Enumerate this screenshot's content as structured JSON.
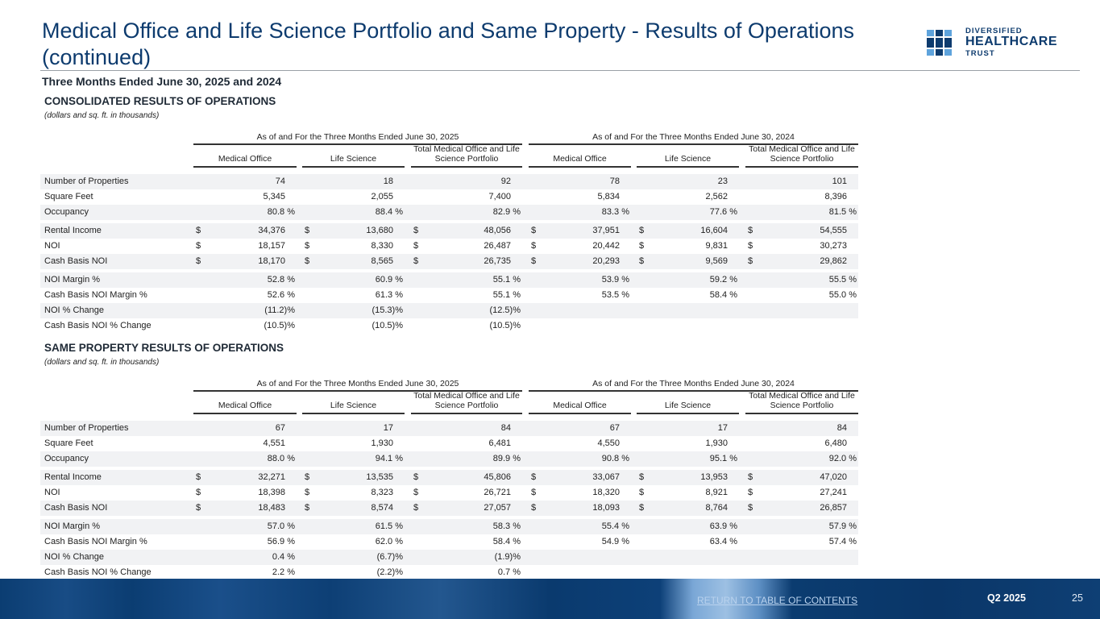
{
  "header": {
    "title": "Medical Office and Life Science Portfolio and Same Property - Results of Operations (continued)",
    "subtitle": "Three Months Ended June 30, 2025 and 2024"
  },
  "logo": {
    "line1": "DIVERSIFIED",
    "line2": "HEALTHCARE",
    "line3": "TRUST"
  },
  "colors": {
    "navy": "#0d3b6e",
    "light": "#5ea3dc"
  },
  "sections": [
    {
      "title": "CONSOLIDATED RESULTS OF OPERATIONS",
      "note": "(dollars and sq. ft. in thousands)",
      "groups": [
        "As of and For the Three Months Ended June 30, 2025",
        "As of and For the Three Months Ended June 30, 2024"
      ],
      "columns": [
        "Medical Office",
        "Life Science",
        "Total Medical Office and Life Science Portfolio",
        "Medical Office",
        "Life Science",
        "Total Medical Office and Life Science Portfolio"
      ],
      "rows": [
        {
          "label": "Number of Properties",
          "dollar": false,
          "values": [
            "74",
            "18",
            "92",
            "78",
            "23",
            "101"
          ]
        },
        {
          "label": "Square Feet",
          "dollar": false,
          "values": [
            "5,345",
            "2,055",
            "7,400",
            "5,834",
            "2,562",
            "8,396"
          ]
        },
        {
          "label": "Occupancy",
          "dollar": false,
          "values": [
            "80.8 %",
            "88.4 %",
            "82.9 %",
            "83.3 %",
            "77.6 %",
            "81.5 %"
          ]
        },
        {
          "label": "Rental Income",
          "dollar": true,
          "values": [
            "34,376",
            "13,680",
            "48,056",
            "37,951",
            "16,604",
            "54,555"
          ]
        },
        {
          "label": "NOI",
          "dollar": true,
          "values": [
            "18,157",
            "8,330",
            "26,487",
            "20,442",
            "9,831",
            "30,273"
          ]
        },
        {
          "label": "Cash Basis NOI",
          "dollar": true,
          "values": [
            "18,170",
            "8,565",
            "26,735",
            "20,293",
            "9,569",
            "29,862"
          ]
        },
        {
          "label": "NOI Margin %",
          "dollar": false,
          "values": [
            "52.8 %",
            "60.9 %",
            "55.1 %",
            "53.9 %",
            "59.2 %",
            "55.5 %"
          ]
        },
        {
          "label": "Cash Basis NOI Margin %",
          "dollar": false,
          "values": [
            "52.6 %",
            "61.3 %",
            "55.1 %",
            "53.5 %",
            "58.4 %",
            "55.0 %"
          ]
        },
        {
          "label": "NOI % Change",
          "dollar": false,
          "values": [
            "(11.2)%",
            "(15.3)%",
            "(12.5)%",
            "",
            "",
            ""
          ]
        },
        {
          "label": "Cash Basis NOI % Change",
          "dollar": false,
          "values": [
            "(10.5)%",
            "(10.5)%",
            "(10.5)%",
            "",
            "",
            ""
          ]
        }
      ]
    },
    {
      "title": "SAME PROPERTY RESULTS OF OPERATIONS",
      "note": "(dollars and sq. ft. in thousands)",
      "groups": [
        "As of and For the Three Months Ended June 30, 2025",
        "As of and For the Three Months Ended June 30, 2024"
      ],
      "columns": [
        "Medical Office",
        "Life Science",
        "Total Medical Office and Life Science Portfolio",
        "Medical Office",
        "Life Science",
        "Total Medical Office and Life Science Portfolio"
      ],
      "rows": [
        {
          "label": "Number of Properties",
          "dollar": false,
          "values": [
            "67",
            "17",
            "84",
            "67",
            "17",
            "84"
          ]
        },
        {
          "label": "Square Feet",
          "dollar": false,
          "values": [
            "4,551",
            "1,930",
            "6,481",
            "4,550",
            "1,930",
            "6,480"
          ]
        },
        {
          "label": "Occupancy",
          "dollar": false,
          "values": [
            "88.0 %",
            "94.1 %",
            "89.9 %",
            "90.8 %",
            "95.1 %",
            "92.0 %"
          ]
        },
        {
          "label": "Rental Income",
          "dollar": true,
          "values": [
            "32,271",
            "13,535",
            "45,806",
            "33,067",
            "13,953",
            "47,020"
          ]
        },
        {
          "label": "NOI",
          "dollar": true,
          "values": [
            "18,398",
            "8,323",
            "26,721",
            "18,320",
            "8,921",
            "27,241"
          ]
        },
        {
          "label": "Cash Basis NOI",
          "dollar": true,
          "values": [
            "18,483",
            "8,574",
            "27,057",
            "18,093",
            "8,764",
            "26,857"
          ]
        },
        {
          "label": "NOI Margin %",
          "dollar": false,
          "values": [
            "57.0 %",
            "61.5 %",
            "58.3 %",
            "55.4 %",
            "63.9 %",
            "57.9 %"
          ]
        },
        {
          "label": "Cash Basis NOI Margin %",
          "dollar": false,
          "values": [
            "56.9 %",
            "62.0 %",
            "58.4 %",
            "54.9 %",
            "63.4 %",
            "57.4 %"
          ]
        },
        {
          "label": "NOI % Change",
          "dollar": false,
          "values": [
            "0.4 %",
            "(6.7)%",
            "(1.9)%",
            "",
            "",
            ""
          ]
        },
        {
          "label": "Cash Basis NOI % Change",
          "dollar": false,
          "values": [
            "2.2 %",
            "(2.2)%",
            "0.7 %",
            "",
            "",
            ""
          ]
        }
      ]
    }
  ],
  "currency_symbol": "$",
  "footer": {
    "return_link": "RETURN TO TABLE OF CONTENTS",
    "quarter": "Q2 2025",
    "page": "25"
  }
}
